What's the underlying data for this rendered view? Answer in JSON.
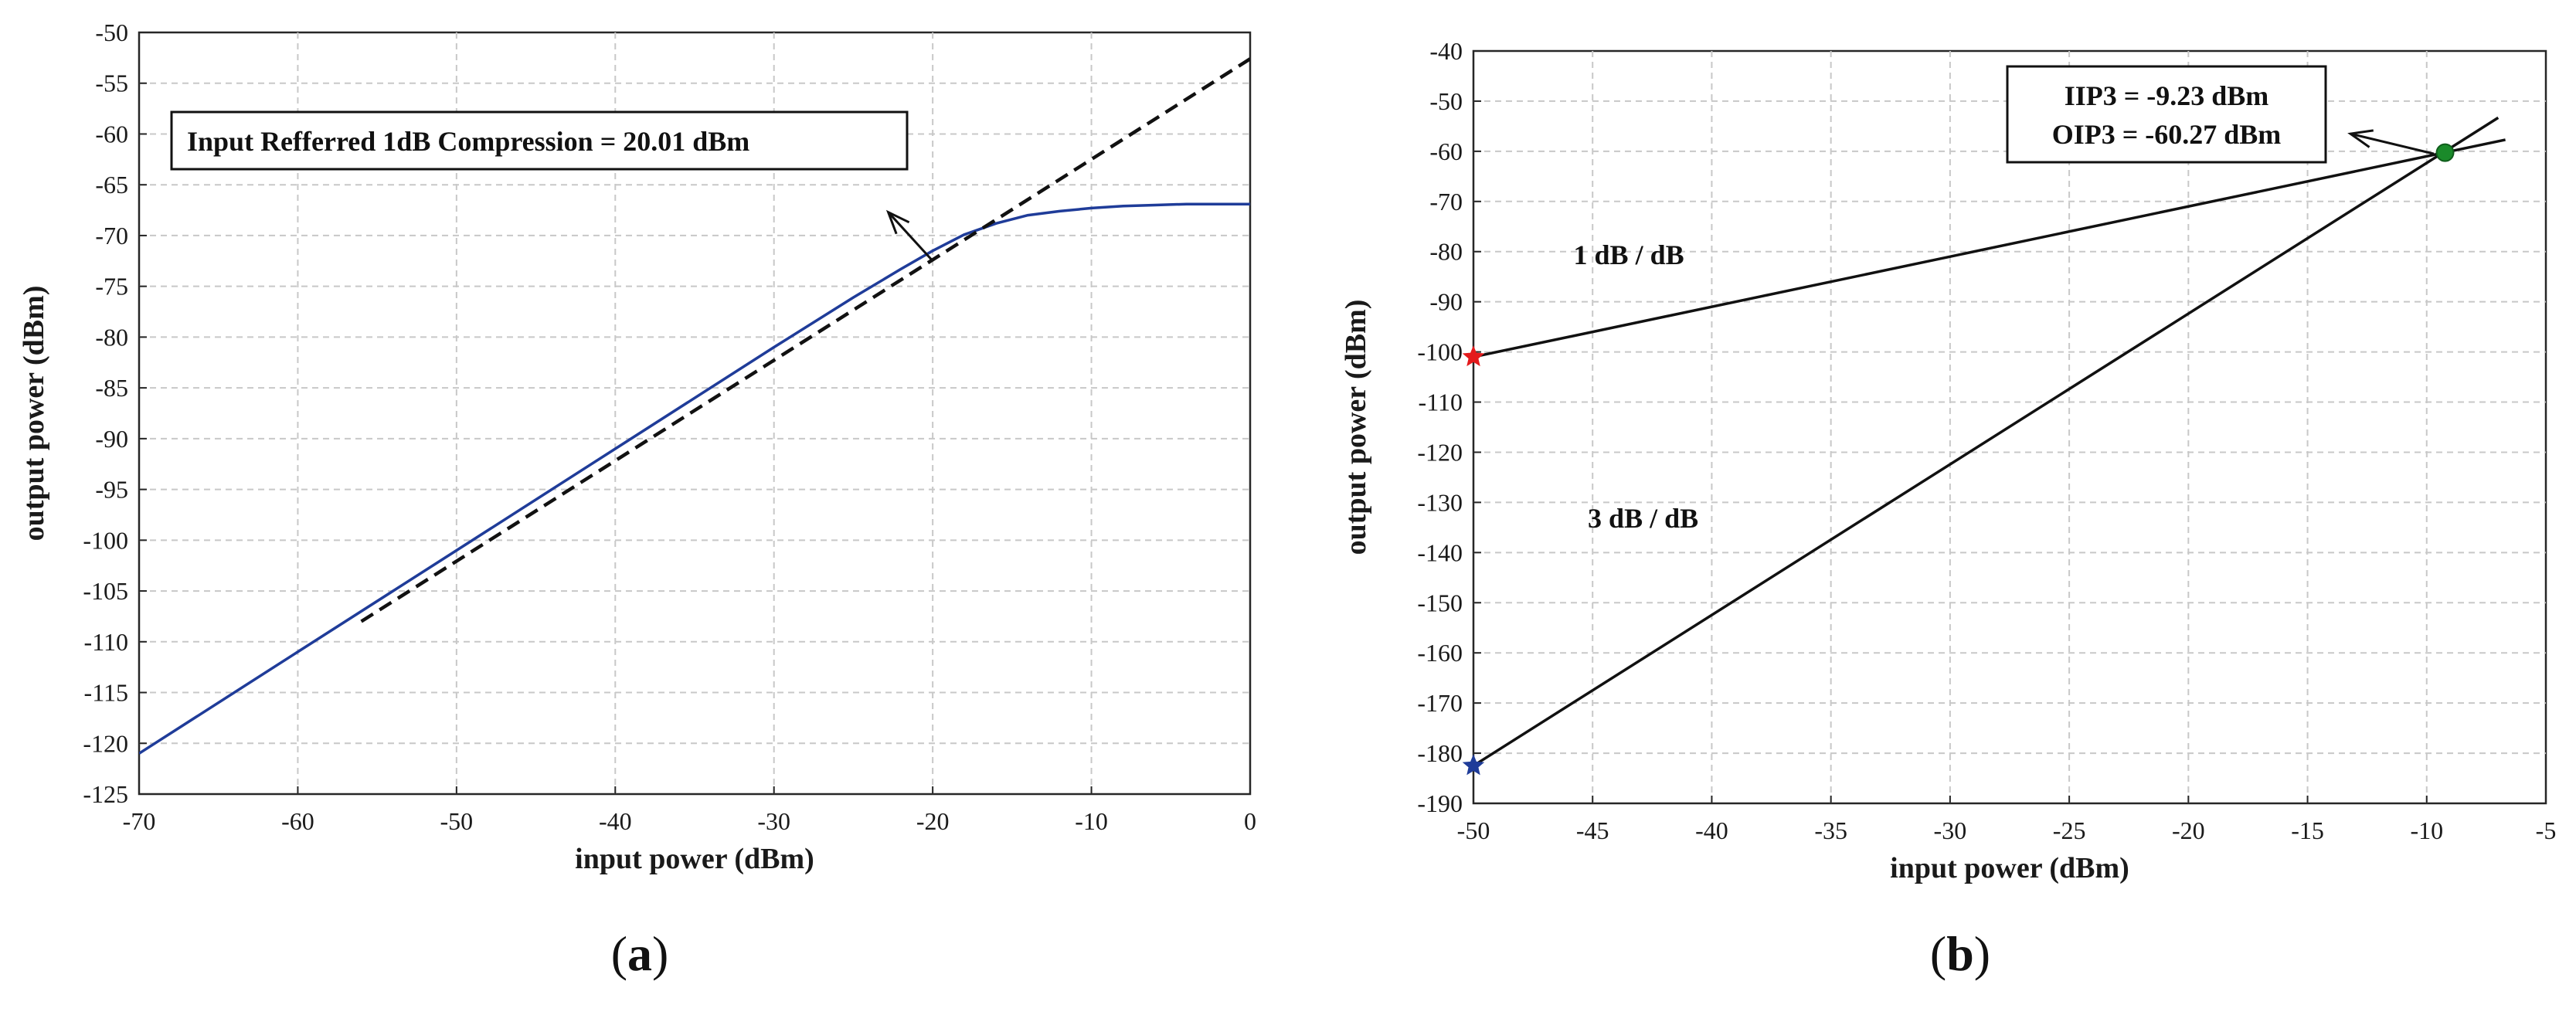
{
  "chart_data": [
    {
      "type": "line",
      "panel_label": "a",
      "xlabel": "input power (dBm)",
      "ylabel": "output power (dBm)",
      "xlim": [
        -70,
        0
      ],
      "ylim": [
        -125,
        -50
      ],
      "xticks": [
        -70,
        -60,
        -50,
        -40,
        -30,
        -20,
        -10,
        0
      ],
      "yticks": [
        -125,
        -120,
        -115,
        -110,
        -105,
        -100,
        -95,
        -90,
        -85,
        -80,
        -75,
        -70,
        -65,
        -60,
        -55,
        -50
      ],
      "grid": true,
      "series": [
        {
          "style": "solid",
          "color": "#1f3c99",
          "x": [
            -70,
            -60,
            -50,
            -40,
            -30,
            -25,
            -22,
            -20,
            -18,
            -16,
            -14,
            -12,
            -10,
            -8,
            -6,
            -4,
            -2,
            0
          ],
          "y": [
            -121.0,
            -111.0,
            -101.0,
            -91.0,
            -81.0,
            -76.1,
            -73.3,
            -71.5,
            -69.9,
            -68.8,
            -68.0,
            -67.6,
            -67.3,
            -67.1,
            -67.0,
            -66.9,
            -66.9,
            -66.9
          ]
        },
        {
          "style": "dashed",
          "color": "#111111",
          "x": [
            -56,
            0
          ],
          "y": [
            -108,
            -52.6
          ]
        }
      ],
      "annotation": {
        "text": "Input Refferred 1dB Compression = 20.01 dBm",
        "arrow_from": [
          -20,
          -72.5
        ],
        "arrow_to": [
          -22.8,
          -67.7
        ]
      }
    },
    {
      "type": "line",
      "panel_label": "b",
      "xlabel": "input power (dBm)",
      "ylabel": "output power (dBm)",
      "xlim": [
        -50,
        -5
      ],
      "ylim": [
        -190,
        -40
      ],
      "xticks": [
        -50,
        -45,
        -40,
        -35,
        -30,
        -25,
        -20,
        -15,
        -10,
        -5
      ],
      "yticks": [
        -190,
        -180,
        -170,
        -160,
        -150,
        -140,
        -130,
        -120,
        -110,
        -100,
        -90,
        -80,
        -70,
        -60,
        -50,
        -40
      ],
      "grid": true,
      "series": [
        {
          "style": "solid",
          "color": "#111111",
          "x": [
            -50,
            -6.7
          ],
          "y": [
            -101,
            -57.7
          ]
        },
        {
          "style": "solid",
          "color": "#111111",
          "x": [
            -50,
            -7
          ],
          "y": [
            -182.5,
            -53.3
          ]
        }
      ],
      "markers": [
        {
          "x": -50,
          "y": -101,
          "shape": "star",
          "color": "#e41a1c"
        },
        {
          "x": -50,
          "y": -182.5,
          "shape": "star",
          "color": "#1f3c99"
        },
        {
          "x": -9.23,
          "y": -60.27,
          "shape": "circle",
          "color": "#1a8a2a"
        }
      ],
      "line_labels": [
        {
          "text": "1 dB / dB",
          "x": -45.8,
          "y": -82.5
        },
        {
          "text": "3 dB / dB",
          "x": -45.2,
          "y": -135
        }
      ],
      "annotation": {
        "lines": [
          "IIP3 = -9.23 dBm",
          "OIP3 = -60.27 dBm"
        ],
        "arrow_from": [
          -9.7,
          -60.5
        ],
        "arrow_to": [
          -13.2,
          -56.5
        ]
      }
    }
  ]
}
